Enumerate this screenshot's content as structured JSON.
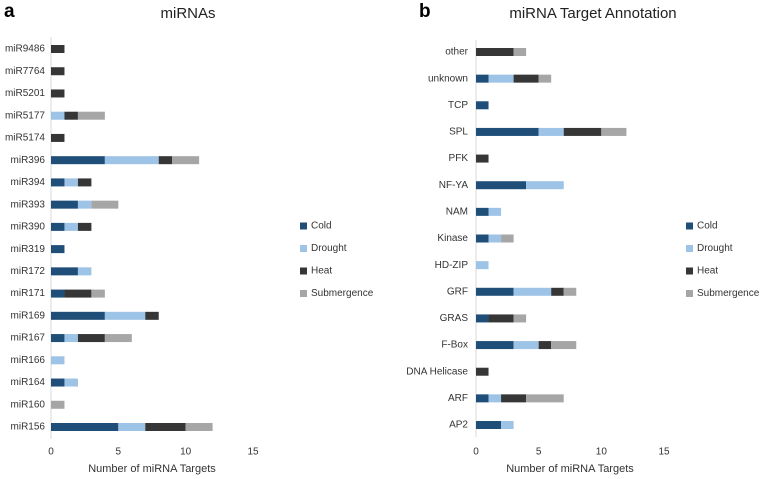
{
  "chart_data": [
    {
      "type": "bar",
      "orientation": "horizontal",
      "stacked": true,
      "panel_label": "a",
      "title": "miRNAs",
      "x_label": "Number of miRNA Targets",
      "categories": [
        "miR9486",
        "miR7764",
        "miR5201",
        "miR5177",
        "miR5174",
        "miR396",
        "miR394",
        "miR393",
        "miR390",
        "miR319",
        "miR172",
        "miR171",
        "miR169",
        "miR167",
        "miR166",
        "miR164",
        "miR160",
        "miR156"
      ],
      "series": [
        {
          "name": "Cold",
          "color": "#1f4e79",
          "values": [
            0,
            0,
            0,
            0,
            0,
            4,
            1,
            2,
            1,
            1,
            2,
            1,
            4,
            1,
            0,
            1,
            0,
            5
          ]
        },
        {
          "name": "Drought",
          "color": "#9dc3e6",
          "values": [
            0,
            0,
            0,
            1,
            0,
            4,
            1,
            1,
            1,
            0,
            1,
            0,
            3,
            1,
            1,
            1,
            0,
            2
          ]
        },
        {
          "name": "Heat",
          "color": "#363636",
          "values": [
            1,
            1,
            1,
            1,
            1,
            1,
            1,
            0,
            1,
            0,
            0,
            2,
            1,
            2,
            0,
            0,
            0,
            3
          ]
        },
        {
          "name": "Submergence",
          "color": "#a6a6a6",
          "values": [
            0,
            0,
            0,
            2,
            0,
            2,
            0,
            2,
            0,
            0,
            0,
            1,
            0,
            2,
            0,
            0,
            1,
            2
          ]
        }
      ],
      "xlim": [
        0,
        15
      ],
      "xticks": [
        0,
        5,
        10,
        15
      ],
      "grid": false,
      "legend": "right"
    },
    {
      "type": "bar",
      "orientation": "horizontal",
      "stacked": true,
      "panel_label": "b",
      "title": "miRNA Target Annotation",
      "x_label": "Number of miRNA Targets",
      "categories": [
        "other",
        "unknown",
        "TCP",
        "SPL",
        "PFK",
        "NF-YA",
        "NAM",
        "Kinase",
        "HD-ZIP",
        "GRF",
        "GRAS",
        "F-Box",
        "DNA Helicase",
        "ARF",
        "AP2"
      ],
      "series": [
        {
          "name": "Cold",
          "color": "#1f4e79",
          "values": [
            0,
            1,
            1,
            5,
            0,
            4,
            1,
            1,
            0,
            3,
            1,
            3,
            0,
            1,
            2
          ]
        },
        {
          "name": "Drought",
          "color": "#9dc3e6",
          "values": [
            0,
            2,
            0,
            2,
            0,
            3,
            1,
            1,
            1,
            3,
            0,
            2,
            0,
            1,
            1
          ]
        },
        {
          "name": "Heat",
          "color": "#363636",
          "values": [
            3,
            2,
            0,
            3,
            1,
            0,
            0,
            0,
            0,
            1,
            2,
            1,
            1,
            2,
            0
          ]
        },
        {
          "name": "Submergence",
          "color": "#a6a6a6",
          "values": [
            1,
            1,
            0,
            2,
            0,
            0,
            0,
            1,
            0,
            1,
            1,
            2,
            0,
            3,
            0
          ]
        }
      ],
      "xlim": [
        0,
        15
      ],
      "xticks": [
        0,
        5,
        10,
        15
      ],
      "grid": false,
      "legend": "right"
    }
  ]
}
